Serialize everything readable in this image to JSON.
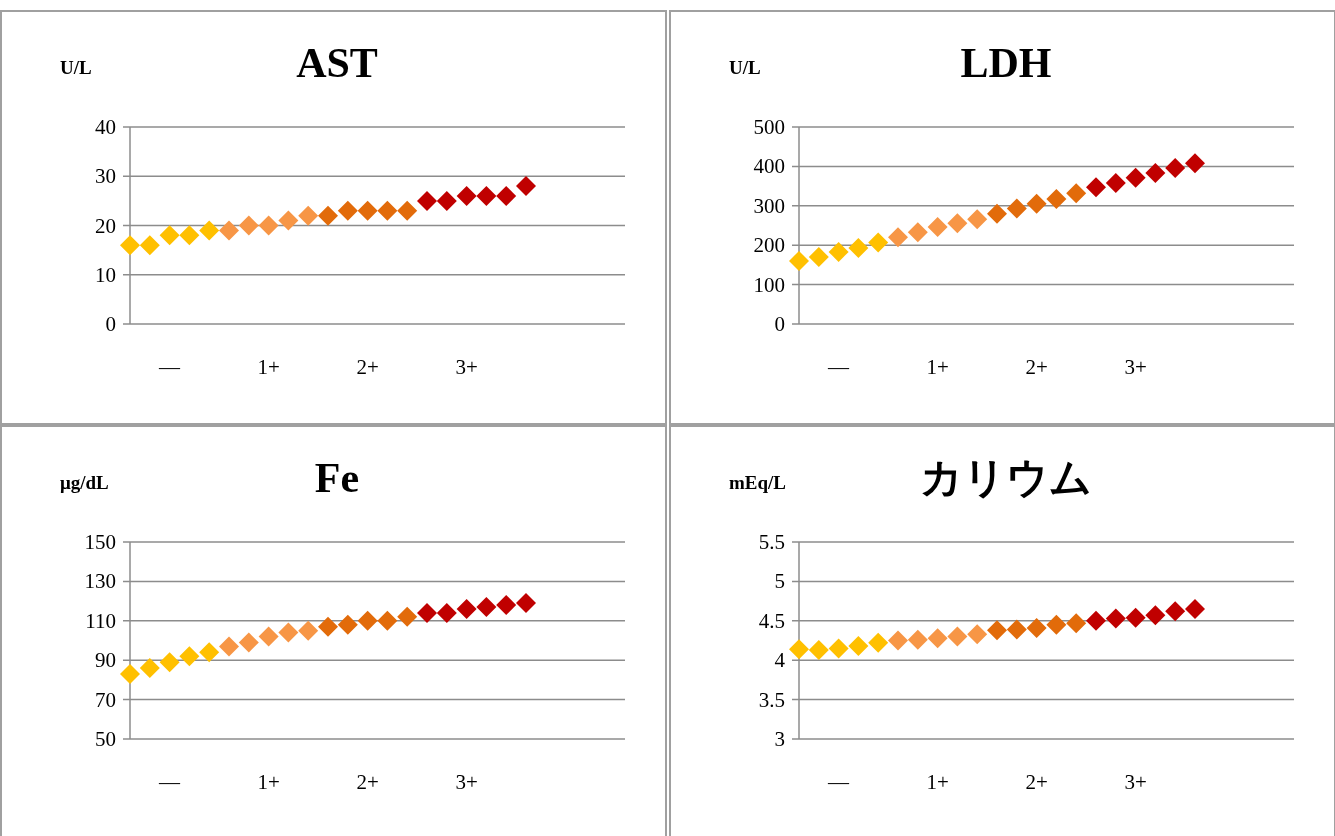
{
  "chart_data": [
    {
      "type": "scatter",
      "title": "AST",
      "ylabel": "U/L",
      "marker": "diamond",
      "grid": "y",
      "ylim": [
        0,
        40
      ],
      "yticks": [
        0,
        10,
        20,
        30,
        40
      ],
      "categories": [
        null,
        null,
        "—",
        null,
        null,
        null,
        null,
        "1+",
        null,
        null,
        null,
        null,
        "2+",
        null,
        null,
        null,
        null,
        "3+",
        null,
        null,
        null
      ],
      "series": [
        {
          "color": "#ffc000",
          "values": [
            16,
            16,
            18,
            18,
            19,
            null,
            null,
            null,
            null,
            null,
            null,
            null,
            null,
            null,
            null,
            null,
            null,
            null,
            null,
            null,
            null
          ]
        },
        {
          "color": "#f79646",
          "values": [
            null,
            null,
            null,
            null,
            null,
            19,
            20,
            20,
            21,
            22,
            null,
            null,
            null,
            null,
            null,
            null,
            null,
            null,
            null,
            null,
            null
          ]
        },
        {
          "color": "#e26b0a",
          "values": [
            null,
            null,
            null,
            null,
            null,
            null,
            null,
            null,
            null,
            null,
            22,
            23,
            23,
            23,
            23,
            null,
            null,
            null,
            null,
            null,
            null
          ]
        },
        {
          "color": "#c00000",
          "values": [
            null,
            null,
            null,
            null,
            null,
            null,
            null,
            null,
            null,
            null,
            null,
            null,
            null,
            null,
            null,
            25,
            25,
            26,
            26,
            26,
            28
          ]
        }
      ]
    },
    {
      "type": "scatter",
      "title": "LDH",
      "ylabel": "U/L",
      "marker": "diamond",
      "grid": "y",
      "ylim": [
        0,
        500
      ],
      "yticks": [
        0,
        100,
        200,
        300,
        400,
        500
      ],
      "categories": [
        null,
        null,
        "—",
        null,
        null,
        null,
        null,
        "1+",
        null,
        null,
        null,
        null,
        "2+",
        null,
        null,
        null,
        null,
        "3+",
        null,
        null,
        null
      ],
      "series": [
        {
          "color": "#ffc000",
          "values": [
            160,
            170,
            183,
            193,
            207,
            null,
            null,
            null,
            null,
            null,
            null,
            null,
            null,
            null,
            null,
            null,
            null,
            null,
            null,
            null,
            null
          ]
        },
        {
          "color": "#f79646",
          "values": [
            null,
            null,
            null,
            null,
            null,
            220,
            233,
            246,
            256,
            266,
            null,
            null,
            null,
            null,
            null,
            null,
            null,
            null,
            null,
            null,
            null
          ]
        },
        {
          "color": "#e26b0a",
          "values": [
            null,
            null,
            null,
            null,
            null,
            null,
            null,
            null,
            null,
            null,
            280,
            293,
            305,
            317,
            332,
            null,
            null,
            null,
            null,
            null,
            null
          ]
        },
        {
          "color": "#c00000",
          "values": [
            null,
            null,
            null,
            null,
            null,
            null,
            null,
            null,
            null,
            null,
            null,
            null,
            null,
            null,
            null,
            347,
            358,
            371,
            383,
            396,
            408
          ]
        }
      ]
    },
    {
      "type": "scatter",
      "title": "Fe",
      "ylabel": "μg/dL",
      "marker": "diamond",
      "grid": "y",
      "ylim": [
        50,
        150
      ],
      "yticks": [
        50,
        70,
        90,
        110,
        130,
        150
      ],
      "categories": [
        null,
        null,
        "—",
        null,
        null,
        null,
        null,
        "1+",
        null,
        null,
        null,
        null,
        "2+",
        null,
        null,
        null,
        null,
        "3+",
        null,
        null,
        null
      ],
      "series": [
        {
          "color": "#ffc000",
          "values": [
            83,
            86,
            89,
            92,
            94,
            null,
            null,
            null,
            null,
            null,
            null,
            null,
            null,
            null,
            null,
            null,
            null,
            null,
            null,
            null,
            null
          ]
        },
        {
          "color": "#f79646",
          "values": [
            null,
            null,
            null,
            null,
            null,
            97,
            99,
            102,
            104,
            105,
            null,
            null,
            null,
            null,
            null,
            null,
            null,
            null,
            null,
            null,
            null
          ]
        },
        {
          "color": "#e26b0a",
          "values": [
            null,
            null,
            null,
            null,
            null,
            null,
            null,
            null,
            null,
            null,
            107,
            108,
            110,
            110,
            112,
            null,
            null,
            null,
            null,
            null,
            null
          ]
        },
        {
          "color": "#c00000",
          "values": [
            null,
            null,
            null,
            null,
            null,
            null,
            null,
            null,
            null,
            null,
            null,
            null,
            null,
            null,
            null,
            114,
            114,
            116,
            117,
            118,
            119
          ]
        }
      ]
    },
    {
      "type": "scatter",
      "title": "カリウム",
      "ylabel": "mEq/L",
      "marker": "diamond",
      "grid": "y",
      "ylim": [
        3,
        5.5
      ],
      "yticks": [
        3,
        3.5,
        4,
        4.5,
        5,
        5.5
      ],
      "categories": [
        null,
        null,
        "—",
        null,
        null,
        null,
        null,
        "1+",
        null,
        null,
        null,
        null,
        "2+",
        null,
        null,
        null,
        null,
        "3+",
        null,
        null,
        null
      ],
      "series": [
        {
          "color": "#ffc000",
          "values": [
            4.14,
            4.13,
            4.15,
            4.18,
            4.22,
            null,
            null,
            null,
            null,
            null,
            null,
            null,
            null,
            null,
            null,
            null,
            null,
            null,
            null,
            null,
            null
          ]
        },
        {
          "color": "#f79646",
          "values": [
            null,
            null,
            null,
            null,
            null,
            4.25,
            4.26,
            4.28,
            4.3,
            4.33,
            null,
            null,
            null,
            null,
            null,
            null,
            null,
            null,
            null,
            null,
            null
          ]
        },
        {
          "color": "#e26b0a",
          "values": [
            null,
            null,
            null,
            null,
            null,
            null,
            null,
            null,
            null,
            null,
            4.38,
            4.39,
            4.41,
            4.45,
            4.47,
            null,
            null,
            null,
            null,
            null,
            null
          ]
        },
        {
          "color": "#c00000",
          "values": [
            null,
            null,
            null,
            null,
            null,
            null,
            null,
            null,
            null,
            null,
            null,
            null,
            null,
            null,
            null,
            4.5,
            4.53,
            4.54,
            4.57,
            4.62,
            4.65
          ]
        }
      ]
    }
  ]
}
